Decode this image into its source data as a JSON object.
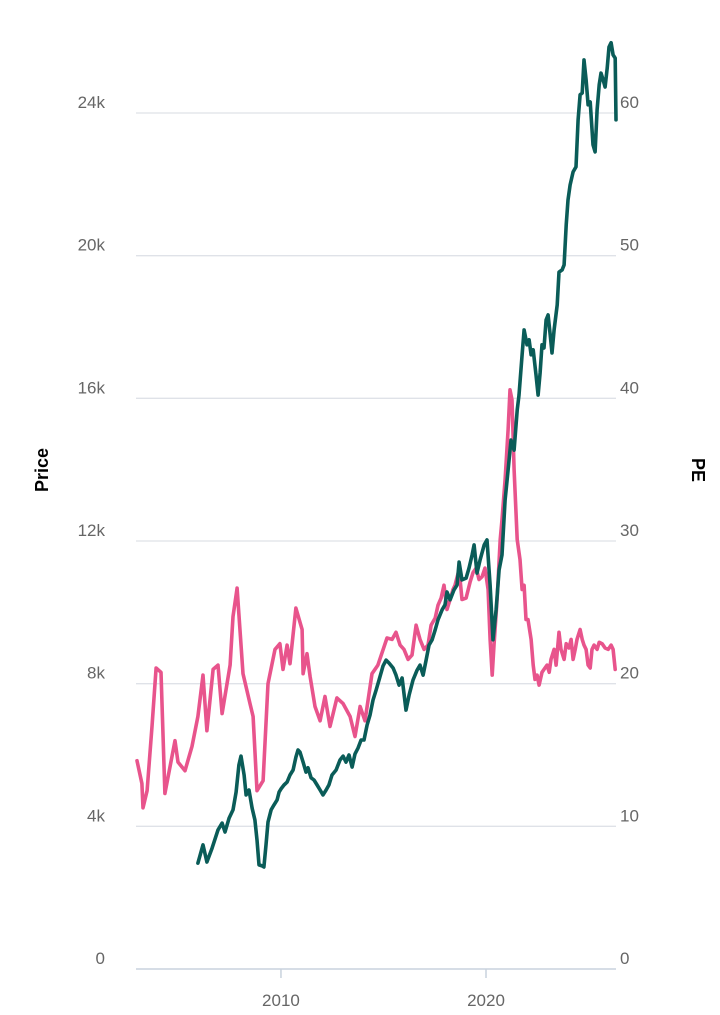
{
  "chart_data": {
    "type": "line",
    "title": "",
    "xlabel": "",
    "ylabel_left": "Price",
    "ylabel_right": "PE",
    "xlim": [
      2002.93,
      2026.34
    ],
    "ylim_left": [
      0,
      24000
    ],
    "ylim_right": [
      0,
      60
    ],
    "x_ticks": [
      2010,
      2020
    ],
    "x_tick_labels": [
      "2010",
      "2020"
    ],
    "y_left_ticks": [
      0,
      4000,
      8000,
      12000,
      16000,
      20000,
      24000
    ],
    "y_left_tick_labels": [
      "0",
      "4k",
      "8k",
      "12k",
      "16k",
      "20k",
      "24k"
    ],
    "y_right_ticks": [
      0,
      10,
      20,
      30,
      40,
      50,
      60
    ],
    "y_right_tick_labels": [
      "0",
      "10",
      "20",
      "30",
      "40",
      "50",
      "60"
    ],
    "grid": true,
    "series": [
      {
        "axis": "right",
        "color": "#e8548c",
        "points": [
          [
            2002.98,
            14.6
          ],
          [
            2003.22,
            13.0
          ],
          [
            2003.27,
            11.3
          ],
          [
            2003.47,
            12.5
          ],
          [
            2003.71,
            17.0
          ],
          [
            2003.91,
            21.1
          ],
          [
            2004.15,
            20.8
          ],
          [
            2004.34,
            12.3
          ],
          [
            2004.83,
            16.0
          ],
          [
            2004.98,
            14.5
          ],
          [
            2005.32,
            13.9
          ],
          [
            2005.66,
            15.6
          ],
          [
            2005.95,
            17.7
          ],
          [
            2006.2,
            20.6
          ],
          [
            2006.39,
            16.7
          ],
          [
            2006.69,
            21.0
          ],
          [
            2006.93,
            21.3
          ],
          [
            2007.13,
            17.9
          ],
          [
            2007.52,
            21.3
          ],
          [
            2007.66,
            24.7
          ],
          [
            2007.86,
            26.7
          ],
          [
            2008.15,
            20.7
          ],
          [
            2008.49,
            18.6
          ],
          [
            2008.64,
            17.7
          ],
          [
            2008.83,
            12.5
          ],
          [
            2009.13,
            13.2
          ],
          [
            2009.37,
            20.0
          ],
          [
            2009.71,
            22.4
          ],
          [
            2009.95,
            22.8
          ],
          [
            2010.1,
            21.0
          ],
          [
            2010.3,
            22.7
          ],
          [
            2010.44,
            21.4
          ],
          [
            2010.73,
            25.3
          ],
          [
            2011.03,
            23.8
          ],
          [
            2011.08,
            20.7
          ],
          [
            2011.27,
            22.1
          ],
          [
            2011.42,
            20.5
          ],
          [
            2011.66,
            18.4
          ],
          [
            2011.91,
            17.4
          ],
          [
            2012.15,
            19.1
          ],
          [
            2012.39,
            17.0
          ],
          [
            2012.73,
            19.0
          ],
          [
            2013.03,
            18.6
          ],
          [
            2013.37,
            17.7
          ],
          [
            2013.61,
            16.3
          ],
          [
            2013.86,
            18.4
          ],
          [
            2014.1,
            17.4
          ],
          [
            2014.44,
            20.7
          ],
          [
            2014.73,
            21.3
          ],
          [
            2015.17,
            23.2
          ],
          [
            2015.42,
            23.1
          ],
          [
            2015.61,
            23.6
          ],
          [
            2015.81,
            22.7
          ],
          [
            2016.0,
            22.4
          ],
          [
            2016.2,
            21.7
          ],
          [
            2016.39,
            22.0
          ],
          [
            2016.59,
            24.1
          ],
          [
            2016.78,
            23.1
          ],
          [
            2016.98,
            22.4
          ],
          [
            2017.17,
            22.7
          ],
          [
            2017.32,
            24.1
          ],
          [
            2017.52,
            24.6
          ],
          [
            2017.66,
            25.5
          ],
          [
            2017.81,
            26.0
          ],
          [
            2017.95,
            26.9
          ],
          [
            2018.1,
            25.2
          ],
          [
            2018.25,
            25.9
          ],
          [
            2018.39,
            26.6
          ],
          [
            2018.49,
            26.9
          ],
          [
            2018.69,
            28.0
          ],
          [
            2018.83,
            25.9
          ],
          [
            2019.03,
            26.0
          ],
          [
            2019.22,
            27.1
          ],
          [
            2019.37,
            27.8
          ],
          [
            2019.52,
            28.1
          ],
          [
            2019.66,
            27.3
          ],
          [
            2019.81,
            27.5
          ],
          [
            2019.95,
            28.1
          ],
          [
            2020.1,
            26.6
          ],
          [
            2020.2,
            23.1
          ],
          [
            2020.3,
            20.6
          ],
          [
            2020.39,
            22.7
          ],
          [
            2020.54,
            25.9
          ],
          [
            2020.69,
            30.1
          ],
          [
            2020.78,
            31.5
          ],
          [
            2020.93,
            34.3
          ],
          [
            2021.08,
            37.8
          ],
          [
            2021.17,
            40.6
          ],
          [
            2021.27,
            39.9
          ],
          [
            2021.37,
            35.0
          ],
          [
            2021.52,
            30.1
          ],
          [
            2021.66,
            28.7
          ],
          [
            2021.76,
            26.6
          ],
          [
            2021.86,
            26.9
          ],
          [
            2021.95,
            24.5
          ],
          [
            2022.05,
            24.5
          ],
          [
            2022.2,
            23.1
          ],
          [
            2022.3,
            21.3
          ],
          [
            2022.39,
            20.3
          ],
          [
            2022.49,
            20.6
          ],
          [
            2022.59,
            19.9
          ],
          [
            2022.73,
            20.8
          ],
          [
            2022.83,
            21.0
          ],
          [
            2022.98,
            21.3
          ],
          [
            2023.08,
            20.8
          ],
          [
            2023.17,
            21.7
          ],
          [
            2023.32,
            22.4
          ],
          [
            2023.42,
            21.3
          ],
          [
            2023.56,
            23.6
          ],
          [
            2023.66,
            22.4
          ],
          [
            2023.81,
            21.7
          ],
          [
            2023.91,
            22.8
          ],
          [
            2024.05,
            22.5
          ],
          [
            2024.15,
            23.1
          ],
          [
            2024.25,
            21.7
          ],
          [
            2024.35,
            22.4
          ],
          [
            2024.44,
            23.1
          ],
          [
            2024.59,
            23.8
          ],
          [
            2024.69,
            23.1
          ],
          [
            2024.78,
            22.7
          ],
          [
            2024.88,
            22.4
          ],
          [
            2024.98,
            21.3
          ],
          [
            2025.08,
            21.1
          ],
          [
            2025.17,
            22.4
          ],
          [
            2025.27,
            22.7
          ],
          [
            2025.42,
            22.4
          ],
          [
            2025.52,
            22.9
          ],
          [
            2025.66,
            22.8
          ],
          [
            2025.81,
            22.5
          ],
          [
            2025.96,
            22.4
          ],
          [
            2026.1,
            22.7
          ],
          [
            2026.2,
            22.4
          ],
          [
            2026.3,
            21.0
          ]
        ]
      },
      {
        "axis": "left",
        "color": "#0a5c58",
        "points": [
          [
            2005.95,
            2970
          ],
          [
            2006.2,
            3480
          ],
          [
            2006.39,
            3000
          ],
          [
            2006.64,
            3390
          ],
          [
            2006.93,
            3900
          ],
          [
            2007.13,
            4090
          ],
          [
            2007.27,
            3840
          ],
          [
            2007.47,
            4230
          ],
          [
            2007.66,
            4460
          ],
          [
            2007.81,
            4960
          ],
          [
            2007.95,
            5720
          ],
          [
            2008.05,
            5970
          ],
          [
            2008.2,
            5440
          ],
          [
            2008.3,
            4880
          ],
          [
            2008.44,
            5020
          ],
          [
            2008.59,
            4510
          ],
          [
            2008.73,
            4180
          ],
          [
            2008.83,
            3620
          ],
          [
            2008.93,
            2920
          ],
          [
            2009.08,
            2890
          ],
          [
            2009.17,
            2860
          ],
          [
            2009.27,
            3480
          ],
          [
            2009.37,
            4120
          ],
          [
            2009.52,
            4460
          ],
          [
            2009.66,
            4600
          ],
          [
            2009.81,
            4740
          ],
          [
            2009.91,
            4960
          ],
          [
            2010.0,
            5050
          ],
          [
            2010.15,
            5160
          ],
          [
            2010.3,
            5240
          ],
          [
            2010.44,
            5440
          ],
          [
            2010.59,
            5580
          ],
          [
            2010.73,
            5940
          ],
          [
            2010.83,
            6140
          ],
          [
            2010.93,
            6080
          ],
          [
            2011.08,
            5800
          ],
          [
            2011.22,
            5520
          ],
          [
            2011.32,
            5640
          ],
          [
            2011.47,
            5360
          ],
          [
            2011.61,
            5300
          ],
          [
            2011.76,
            5160
          ],
          [
            2011.91,
            5020
          ],
          [
            2012.05,
            4880
          ],
          [
            2012.2,
            5020
          ],
          [
            2012.34,
            5160
          ],
          [
            2012.49,
            5440
          ],
          [
            2012.69,
            5580
          ],
          [
            2012.88,
            5860
          ],
          [
            2013.03,
            5970
          ],
          [
            2013.17,
            5800
          ],
          [
            2013.32,
            6000
          ],
          [
            2013.47,
            5660
          ],
          [
            2013.61,
            6030
          ],
          [
            2013.76,
            6200
          ],
          [
            2013.91,
            6420
          ],
          [
            2014.05,
            6420
          ],
          [
            2014.2,
            6840
          ],
          [
            2014.34,
            7120
          ],
          [
            2014.49,
            7540
          ],
          [
            2014.64,
            7820
          ],
          [
            2014.78,
            8100
          ],
          [
            2014.98,
            8500
          ],
          [
            2015.13,
            8660
          ],
          [
            2015.27,
            8580
          ],
          [
            2015.47,
            8440
          ],
          [
            2015.61,
            8240
          ],
          [
            2015.76,
            7960
          ],
          [
            2015.91,
            8160
          ],
          [
            2016.1,
            7260
          ],
          [
            2016.25,
            7680
          ],
          [
            2016.44,
            8100
          ],
          [
            2016.64,
            8380
          ],
          [
            2016.78,
            8520
          ],
          [
            2016.93,
            8240
          ],
          [
            2017.08,
            8660
          ],
          [
            2017.22,
            9080
          ],
          [
            2017.37,
            9230
          ],
          [
            2017.52,
            9510
          ],
          [
            2017.66,
            9790
          ],
          [
            2017.86,
            10070
          ],
          [
            2018.0,
            10210
          ],
          [
            2018.1,
            10570
          ],
          [
            2018.25,
            10350
          ],
          [
            2018.44,
            10630
          ],
          [
            2018.59,
            10770
          ],
          [
            2018.69,
            11410
          ],
          [
            2018.83,
            10910
          ],
          [
            2019.03,
            10960
          ],
          [
            2019.17,
            11240
          ],
          [
            2019.32,
            11610
          ],
          [
            2019.42,
            11890
          ],
          [
            2019.56,
            11100
          ],
          [
            2019.71,
            11470
          ],
          [
            2019.91,
            11890
          ],
          [
            2020.05,
            12030
          ],
          [
            2020.2,
            10770
          ],
          [
            2020.34,
            9230
          ],
          [
            2020.49,
            10070
          ],
          [
            2020.64,
            11190
          ],
          [
            2020.78,
            11610
          ],
          [
            2020.93,
            13150
          ],
          [
            2021.08,
            13990
          ],
          [
            2021.22,
            14830
          ],
          [
            2021.37,
            14550
          ],
          [
            2021.52,
            15670
          ],
          [
            2021.61,
            16090
          ],
          [
            2021.76,
            17220
          ],
          [
            2021.86,
            17920
          ],
          [
            2022.0,
            17500
          ],
          [
            2022.1,
            17640
          ],
          [
            2022.2,
            17220
          ],
          [
            2022.3,
            17360
          ],
          [
            2022.44,
            16660
          ],
          [
            2022.54,
            16090
          ],
          [
            2022.64,
            16710
          ],
          [
            2022.73,
            17500
          ],
          [
            2022.83,
            17410
          ],
          [
            2022.93,
            18200
          ],
          [
            2023.03,
            18340
          ],
          [
            2023.13,
            17780
          ],
          [
            2023.22,
            17270
          ],
          [
            2023.32,
            17920
          ],
          [
            2023.47,
            18620
          ],
          [
            2023.56,
            19540
          ],
          [
            2023.71,
            19600
          ],
          [
            2023.81,
            19740
          ],
          [
            2023.91,
            20860
          ],
          [
            2024.0,
            21560
          ],
          [
            2024.1,
            21980
          ],
          [
            2024.25,
            22350
          ],
          [
            2024.39,
            22490
          ],
          [
            2024.49,
            23810
          ],
          [
            2024.59,
            24510
          ],
          [
            2024.69,
            24560
          ],
          [
            2024.78,
            25490
          ],
          [
            2024.88,
            24930
          ],
          [
            2024.98,
            24230
          ],
          [
            2025.08,
            24310
          ],
          [
            2025.22,
            23110
          ],
          [
            2025.32,
            22910
          ],
          [
            2025.42,
            24090
          ],
          [
            2025.52,
            24790
          ],
          [
            2025.61,
            25120
          ],
          [
            2025.71,
            24930
          ],
          [
            2025.81,
            24730
          ],
          [
            2025.91,
            25260
          ],
          [
            2026.0,
            25850
          ],
          [
            2026.1,
            25970
          ],
          [
            2026.2,
            25630
          ],
          [
            2026.3,
            25540
          ],
          [
            2026.34,
            23810
          ]
        ]
      }
    ]
  }
}
